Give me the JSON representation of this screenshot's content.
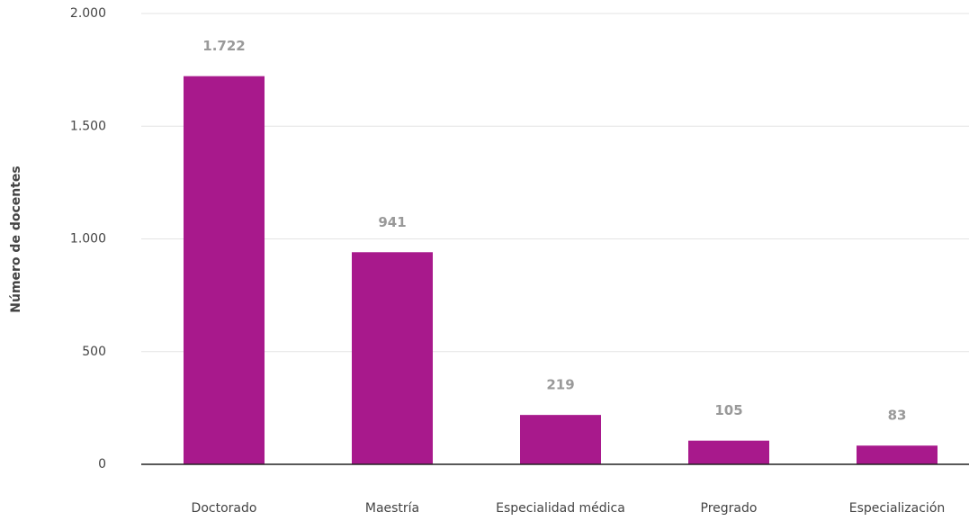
{
  "chart_data": {
    "type": "bar",
    "y_label": "Número de docentes",
    "categories": [
      "Doctorado",
      "Maestría",
      "Especialidad médica",
      "Pregrado",
      "Especialización"
    ],
    "values": [
      1722,
      941,
      219,
      105,
      83
    ],
    "value_labels": [
      "1.722",
      "941",
      "219",
      "105",
      "83"
    ],
    "color": "#a8198c",
    "ylim": [
      0,
      2000
    ],
    "yticks": [
      0,
      500,
      {
        "value": 1000,
        "label": "1.000"
      },
      {
        "value": 1500,
        "label": "1.500"
      },
      {
        "value": 2000,
        "label": "2.000"
      }
    ],
    "grid": true
  }
}
